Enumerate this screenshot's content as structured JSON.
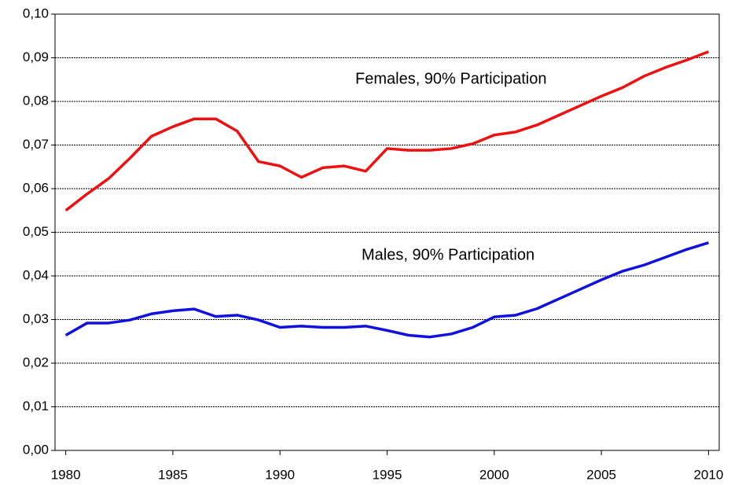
{
  "chart_data": {
    "type": "line",
    "x": [
      1980,
      1981,
      1982,
      1983,
      1984,
      1985,
      1986,
      1987,
      1988,
      1989,
      1990,
      1991,
      1992,
      1993,
      1994,
      1995,
      1996,
      1997,
      1998,
      1999,
      2000,
      2001,
      2002,
      2003,
      2004,
      2005,
      2006,
      2007,
      2008,
      2009,
      2010
    ],
    "series": [
      {
        "name": "Females, 90% Participation",
        "color": "#ee1111",
        "values": [
          0.055,
          0.0588,
          0.0623,
          0.067,
          0.072,
          0.0742,
          0.076,
          0.076,
          0.0732,
          0.0662,
          0.0652,
          0.0626,
          0.0648,
          0.0652,
          0.064,
          0.0692,
          0.0688,
          0.0688,
          0.0692,
          0.0703,
          0.0723,
          0.073,
          0.0746,
          0.0768,
          0.079,
          0.0812,
          0.0832,
          0.0858,
          0.0878,
          0.0895,
          0.0914
        ]
      },
      {
        "name": "Males, 90% Participation",
        "color": "#1111dd",
        "values": [
          0.0264,
          0.0292,
          0.0292,
          0.0299,
          0.0313,
          0.032,
          0.0324,
          0.0307,
          0.031,
          0.0299,
          0.0282,
          0.0285,
          0.0282,
          0.0282,
          0.0285,
          0.0275,
          0.0264,
          0.026,
          0.0267,
          0.0282,
          0.0306,
          0.031,
          0.0325,
          0.0347,
          0.0369,
          0.0391,
          0.0411,
          0.0425,
          0.0443,
          0.0461,
          0.0476
        ]
      }
    ],
    "xlim": [
      1979.5,
      2010.5
    ],
    "xticks": [
      1980,
      1985,
      1990,
      1995,
      2000,
      2005,
      2010
    ],
    "ylim": [
      0,
      0.1
    ],
    "yticks": [
      {
        "value": 0,
        "label": "0,00"
      },
      {
        "value": 0.01,
        "label": "0,01"
      },
      {
        "value": 0.02,
        "label": "0,02"
      },
      {
        "value": 0.03,
        "label": "0,03"
      },
      {
        "value": 0.04,
        "label": "0,04"
      },
      {
        "value": 0.05,
        "label": "0,05"
      },
      {
        "value": 0.06,
        "label": "0,06"
      },
      {
        "value": 0.07,
        "label": "0,07"
      },
      {
        "value": 0.08,
        "label": "0,08"
      },
      {
        "value": 0.09,
        "label": "0,09"
      },
      {
        "value": 0.1,
        "label": "0,10"
      }
    ],
    "grid": true
  }
}
